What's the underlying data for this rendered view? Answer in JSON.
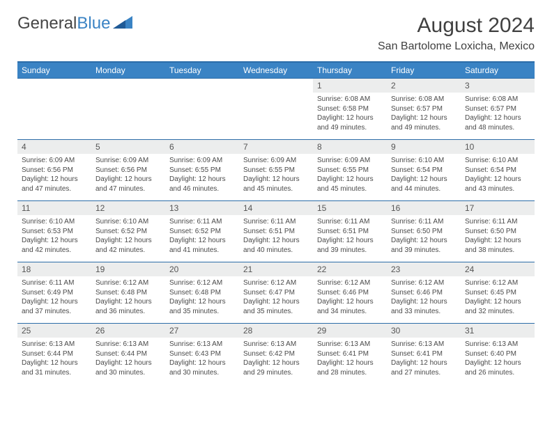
{
  "logo": {
    "text_general": "General",
    "text_blue": "Blue"
  },
  "title": "August 2024",
  "location": "San Bartolome Loxicha, Mexico",
  "colors": {
    "header_bg": "#3a83c4",
    "header_border": "#2b6ca8",
    "day_bg": "#eceded",
    "text": "#4a4a4a",
    "title_text": "#404040"
  },
  "day_names": [
    "Sunday",
    "Monday",
    "Tuesday",
    "Wednesday",
    "Thursday",
    "Friday",
    "Saturday"
  ],
  "weeks": [
    {
      "nums": [
        "",
        "",
        "",
        "",
        "1",
        "2",
        "3"
      ],
      "cells": [
        null,
        null,
        null,
        null,
        {
          "sunrise": "6:08 AM",
          "sunset": "6:58 PM",
          "daylight": "12 hours and 49 minutes."
        },
        {
          "sunrise": "6:08 AM",
          "sunset": "6:57 PM",
          "daylight": "12 hours and 49 minutes."
        },
        {
          "sunrise": "6:08 AM",
          "sunset": "6:57 PM",
          "daylight": "12 hours and 48 minutes."
        }
      ]
    },
    {
      "nums": [
        "4",
        "5",
        "6",
        "7",
        "8",
        "9",
        "10"
      ],
      "cells": [
        {
          "sunrise": "6:09 AM",
          "sunset": "6:56 PM",
          "daylight": "12 hours and 47 minutes."
        },
        {
          "sunrise": "6:09 AM",
          "sunset": "6:56 PM",
          "daylight": "12 hours and 47 minutes."
        },
        {
          "sunrise": "6:09 AM",
          "sunset": "6:55 PM",
          "daylight": "12 hours and 46 minutes."
        },
        {
          "sunrise": "6:09 AM",
          "sunset": "6:55 PM",
          "daylight": "12 hours and 45 minutes."
        },
        {
          "sunrise": "6:09 AM",
          "sunset": "6:55 PM",
          "daylight": "12 hours and 45 minutes."
        },
        {
          "sunrise": "6:10 AM",
          "sunset": "6:54 PM",
          "daylight": "12 hours and 44 minutes."
        },
        {
          "sunrise": "6:10 AM",
          "sunset": "6:54 PM",
          "daylight": "12 hours and 43 minutes."
        }
      ]
    },
    {
      "nums": [
        "11",
        "12",
        "13",
        "14",
        "15",
        "16",
        "17"
      ],
      "cells": [
        {
          "sunrise": "6:10 AM",
          "sunset": "6:53 PM",
          "daylight": "12 hours and 42 minutes."
        },
        {
          "sunrise": "6:10 AM",
          "sunset": "6:52 PM",
          "daylight": "12 hours and 42 minutes."
        },
        {
          "sunrise": "6:11 AM",
          "sunset": "6:52 PM",
          "daylight": "12 hours and 41 minutes."
        },
        {
          "sunrise": "6:11 AM",
          "sunset": "6:51 PM",
          "daylight": "12 hours and 40 minutes."
        },
        {
          "sunrise": "6:11 AM",
          "sunset": "6:51 PM",
          "daylight": "12 hours and 39 minutes."
        },
        {
          "sunrise": "6:11 AM",
          "sunset": "6:50 PM",
          "daylight": "12 hours and 39 minutes."
        },
        {
          "sunrise": "6:11 AM",
          "sunset": "6:50 PM",
          "daylight": "12 hours and 38 minutes."
        }
      ]
    },
    {
      "nums": [
        "18",
        "19",
        "20",
        "21",
        "22",
        "23",
        "24"
      ],
      "cells": [
        {
          "sunrise": "6:11 AM",
          "sunset": "6:49 PM",
          "daylight": "12 hours and 37 minutes."
        },
        {
          "sunrise": "6:12 AM",
          "sunset": "6:48 PM",
          "daylight": "12 hours and 36 minutes."
        },
        {
          "sunrise": "6:12 AM",
          "sunset": "6:48 PM",
          "daylight": "12 hours and 35 minutes."
        },
        {
          "sunrise": "6:12 AM",
          "sunset": "6:47 PM",
          "daylight": "12 hours and 35 minutes."
        },
        {
          "sunrise": "6:12 AM",
          "sunset": "6:46 PM",
          "daylight": "12 hours and 34 minutes."
        },
        {
          "sunrise": "6:12 AM",
          "sunset": "6:46 PM",
          "daylight": "12 hours and 33 minutes."
        },
        {
          "sunrise": "6:12 AM",
          "sunset": "6:45 PM",
          "daylight": "12 hours and 32 minutes."
        }
      ]
    },
    {
      "nums": [
        "25",
        "26",
        "27",
        "28",
        "29",
        "30",
        "31"
      ],
      "cells": [
        {
          "sunrise": "6:13 AM",
          "sunset": "6:44 PM",
          "daylight": "12 hours and 31 minutes."
        },
        {
          "sunrise": "6:13 AM",
          "sunset": "6:44 PM",
          "daylight": "12 hours and 30 minutes."
        },
        {
          "sunrise": "6:13 AM",
          "sunset": "6:43 PM",
          "daylight": "12 hours and 30 minutes."
        },
        {
          "sunrise": "6:13 AM",
          "sunset": "6:42 PM",
          "daylight": "12 hours and 29 minutes."
        },
        {
          "sunrise": "6:13 AM",
          "sunset": "6:41 PM",
          "daylight": "12 hours and 28 minutes."
        },
        {
          "sunrise": "6:13 AM",
          "sunset": "6:41 PM",
          "daylight": "12 hours and 27 minutes."
        },
        {
          "sunrise": "6:13 AM",
          "sunset": "6:40 PM",
          "daylight": "12 hours and 26 minutes."
        }
      ]
    }
  ],
  "labels": {
    "sunrise_prefix": "Sunrise: ",
    "sunset_prefix": "Sunset: ",
    "daylight_prefix": "Daylight: "
  }
}
